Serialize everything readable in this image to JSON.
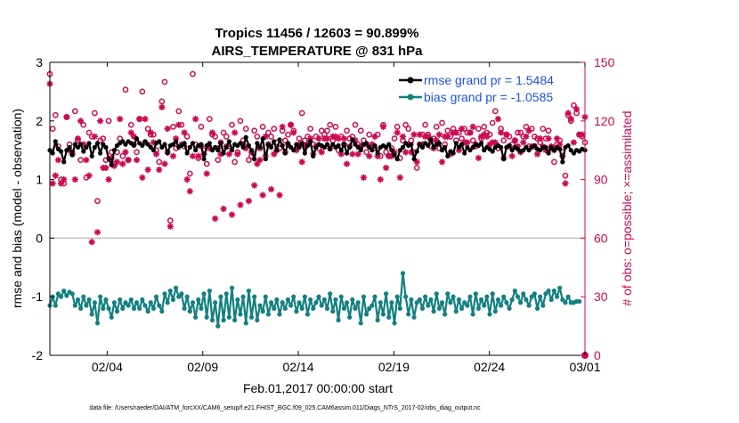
{
  "chart_data": {
    "type": "line",
    "title_line1": "Tropics 11456 / 12603 = 90.899%",
    "title_line2": "AIRS_TEMPERATURE @ 831 hPa",
    "xlabel": "Feb.01,2017 00:00:00 start",
    "ylabel_left": "rmse and bias (model - observation)",
    "ylabel_right": "# of obs: o=possible; ×=assimilated",
    "footer": "data file: /Users/raeder/DAI/ATM_forcXX/CAM6_setup/f.e21.FHIST_BGC.f09_025.CAM6assim.011/Diags_NTrS_2017-02/obs_diag_output.nc",
    "x_ticks": [
      "02/04",
      "02/09",
      "02/14",
      "02/19",
      "02/24",
      "03/01"
    ],
    "x_tick_days": [
      4,
      9,
      14,
      19,
      24,
      29
    ],
    "xlim": [
      1,
      29
    ],
    "ylim_left": [
      -2,
      3
    ],
    "y_ticks_left": [
      -2,
      -1,
      0,
      1,
      2,
      3
    ],
    "ylim_right": [
      0,
      150
    ],
    "y_ticks_right": [
      0,
      30,
      60,
      90,
      120,
      150
    ],
    "colors": {
      "rmse": "#000000",
      "bias": "#138080",
      "obs": "#cc0a52",
      "legend_text": "#1a53e6",
      "zero_line": "#c0c0c0"
    },
    "series": [
      {
        "name": "rmse grand pr = 1.5484",
        "axis": "left",
        "marker": "filled-circle",
        "values": [
          1.5,
          1.45,
          1.65,
          1.52,
          1.48,
          1.3,
          1.5,
          1.55,
          1.42,
          1.6,
          1.55,
          1.6,
          1.48,
          1.55,
          1.62,
          1.4,
          1.55,
          1.62,
          1.45,
          1.6,
          1.55,
          1.35,
          1.25,
          1.5,
          1.58,
          1.62,
          1.65,
          1.6,
          1.65,
          1.62,
          1.58,
          1.7,
          1.62,
          1.58,
          1.65,
          1.6,
          1.55,
          1.5,
          1.62,
          1.65,
          1.55,
          1.6,
          1.45,
          1.58,
          1.6,
          1.65,
          1.55,
          1.58,
          1.62,
          1.45,
          1.55,
          1.62,
          1.5,
          1.58,
          1.6,
          1.35,
          1.58,
          1.62,
          1.5,
          1.55,
          1.5,
          1.62,
          1.45,
          1.55,
          1.65,
          1.5,
          1.6,
          1.58,
          1.62,
          1.55,
          1.72,
          1.58,
          1.5,
          1.35,
          1.62,
          1.55,
          1.7,
          1.35,
          1.6,
          1.55,
          1.65,
          1.5,
          1.68,
          1.58,
          1.45,
          1.62,
          1.55,
          1.5,
          1.6,
          1.55,
          1.62,
          1.45,
          1.58,
          1.65,
          1.4,
          1.55,
          1.6,
          1.58,
          1.55,
          1.6,
          1.52,
          1.6,
          1.55,
          1.58,
          1.5,
          1.6,
          1.45,
          1.55,
          1.68,
          1.6,
          1.55,
          1.5,
          1.6,
          1.62,
          1.55,
          1.5,
          1.58,
          1.45,
          1.55,
          1.58,
          1.55,
          1.6,
          1.5,
          1.42,
          1.35,
          1.5,
          1.55,
          1.62,
          1.58,
          1.6,
          1.35,
          1.48,
          1.6,
          1.55,
          1.62,
          1.58,
          1.68,
          1.55,
          1.6,
          1.62,
          1.5,
          1.55,
          1.4,
          1.48,
          1.45,
          1.62,
          1.55,
          1.6,
          1.45,
          1.55,
          1.5,
          1.55,
          1.6,
          1.58,
          1.62,
          1.5,
          1.55,
          1.52,
          1.48,
          1.55,
          1.58,
          1.55,
          1.35,
          1.55,
          1.58,
          1.5,
          1.55,
          1.52,
          1.48,
          1.5,
          1.55,
          1.5,
          1.55,
          1.58,
          1.52,
          1.5,
          1.55,
          1.55,
          1.45,
          1.55,
          1.5,
          1.55,
          1.52,
          1.3,
          1.55,
          1.58,
          1.5,
          1.45,
          1.5,
          1.48,
          1.52,
          1.5
        ]
      },
      {
        "name": "bias grand pr = -1.0585",
        "axis": "left",
        "marker": "filled-circle",
        "values": [
          -1.15,
          -1.0,
          -1.15,
          -0.95,
          -1.0,
          -0.9,
          -0.98,
          -0.92,
          -0.95,
          -1.15,
          -1.05,
          -1.2,
          -1.0,
          -1.15,
          -1.05,
          -1.3,
          -1.1,
          -1.45,
          -1.0,
          -1.2,
          -1.05,
          -1.2,
          -1.35,
          -1.1,
          -1.25,
          -1.05,
          -1.2,
          -1.1,
          -1.15,
          -1.05,
          -1.2,
          -1.1,
          -1.2,
          -1.05,
          -1.15,
          -1.25,
          -1.1,
          -1.2,
          -1.0,
          -1.15,
          -1.25,
          -0.95,
          -1.1,
          -0.9,
          -1.05,
          -0.85,
          -1.0,
          -0.95,
          -1.2,
          -1.0,
          -1.25,
          -1.1,
          -1.35,
          -1.05,
          -1.2,
          -0.95,
          -1.35,
          -0.9,
          -1.4,
          -1.1,
          -1.5,
          -1.0,
          -1.4,
          -0.95,
          -1.35,
          -0.85,
          -1.4,
          -1.05,
          -1.3,
          -1.0,
          -1.45,
          -0.9,
          -1.35,
          -1.0,
          -1.4,
          -1.15,
          -1.25,
          -1.0,
          -1.3,
          -1.1,
          -1.2,
          -1.05,
          -1.3,
          -1.1,
          -1.2,
          -1.05,
          -1.15,
          -1.0,
          -1.25,
          -1.1,
          -1.2,
          -1.0,
          -1.3,
          -1.05,
          -1.2,
          -1.1,
          -1.0,
          -1.15,
          -1.05,
          -1.2,
          -0.95,
          -1.25,
          -1.05,
          -1.4,
          -1.0,
          -1.2,
          -1.1,
          -1.35,
          -1.05,
          -1.2,
          -1.1,
          -1.45,
          -1.0,
          -1.3,
          -1.2,
          -1.15,
          -1.0,
          -1.4,
          -1.1,
          -1.3,
          -0.95,
          -1.35,
          -1.1,
          -1.45,
          -1.0,
          -1.2,
          -0.6,
          -1.0,
          -1.3,
          -1.05,
          -1.35,
          -1.1,
          -1.05,
          -1.2,
          -1.0,
          -1.15,
          -1.05,
          -1.25,
          -0.95,
          -1.2,
          -1.1,
          -1.3,
          -0.95,
          -1.1,
          -1.0,
          -1.25,
          -1.05,
          -1.2,
          -1.1,
          -1.15,
          -1.0,
          -1.3,
          -0.95,
          -1.2,
          -1.05,
          -1.15,
          -1.0,
          -1.3,
          -0.95,
          -1.25,
          -1.05,
          -1.15,
          -1.0,
          -1.1,
          -1.2,
          -1.05,
          -0.9,
          -1.0,
          -1.1,
          -0.95,
          -1.05,
          -1.15,
          -1.0,
          -0.95,
          -1.2,
          -1.0,
          -1.15,
          -0.95,
          -0.9,
          -1.05,
          -0.9,
          -1.0,
          -0.85,
          -1.05,
          -1.1,
          -1.0,
          -1.1,
          -1.1,
          -1.08,
          -1.08
        ]
      },
      {
        "name": "possible obs",
        "axis": "right",
        "marker": "open-circle",
        "values": [
          144,
          116,
          123,
          107,
          90,
          88,
          122,
          108,
          104,
          125,
          110,
          100,
          118,
          91,
          114,
          112,
          124,
          79,
          110,
          111,
          100,
          120,
          104,
          98,
          104,
          111,
          102,
          136,
          100,
          118,
          108,
          104,
          121,
          135,
          109,
          116,
          113,
          113,
          105,
          99,
          130,
          140,
          104,
          69,
          117,
          106,
          125,
          118,
          107,
          112,
          93,
          144,
          108,
          101,
          117,
          105,
          98,
          121,
          113,
          112,
          100,
          109,
          114,
          112,
          107,
          118,
          99,
          104,
          120,
          110,
          116,
          100,
          102,
          115,
          112,
          106,
          117,
          102,
          114,
          112,
          116,
          109,
          106,
          115,
          110,
          113,
          118,
          115,
          106,
          111,
          124,
          110,
          112,
          116,
          108,
          112,
          106,
          115,
          113,
          115,
          118,
          110,
          117,
          105,
          112,
          108,
          115,
          111,
          112,
          118,
          108,
          115,
          110,
          104,
          113,
          107,
          106,
          113,
          102,
          118,
          104,
          102,
          106,
          111,
          117,
          101,
          110,
          118,
          116,
          110,
          104,
          96,
          108,
          113,
          118,
          113,
          107,
          111,
          117,
          106,
          119,
          108,
          115,
          112,
          116,
          110,
          114,
          111,
          116,
          114,
          114,
          110,
          107,
          116,
          111,
          117,
          114,
          113,
          119,
          125,
          106,
          116,
          110,
          113,
          112,
          108,
          110,
          114,
          114,
          112,
          117,
          107,
          116,
          112,
          111,
          109,
          116,
          111,
          115,
          106,
          99,
          108,
          110,
          104,
          92,
          123,
          120,
          128,
          124,
          113,
          112,
          109
        ]
      },
      {
        "name": "assimilated obs",
        "axis": "right",
        "marker": "asterisk",
        "values": [
          139,
          88,
          92,
          100,
          88,
          90,
          122,
          105,
          103,
          90,
          111,
          120,
          108,
          100,
          92,
          58,
          112,
          63,
          120,
          96,
          96,
          90,
          101,
          97,
          99,
          121,
          98,
          104,
          100,
          114,
          112,
          100,
          121,
          91,
          121,
          95,
          114,
          109,
          103,
          95,
          127,
          98,
          116,
          66,
          102,
          111,
          118,
          108,
          114,
          90,
          84,
          102,
          121,
          102,
          107,
          103,
          93,
          106,
          114,
          70,
          106,
          103,
          75,
          107,
          103,
          72,
          114,
          103,
          77,
          108,
          106,
          79,
          104,
          87,
          98,
          100,
          82,
          112,
          108,
          85,
          103,
          105,
          82,
          117,
          104,
          108,
          118,
          114,
          105,
          108,
          99,
          107,
          108,
          111,
          103,
          107,
          111,
          104,
          111,
          111,
          106,
          112,
          112,
          111,
          103,
          111,
          98,
          107,
          103,
          110,
          103,
          107,
          91,
          108,
          102,
          108,
          112,
          102,
          90,
          117,
          96,
          102,
          102,
          104,
          114,
          91,
          112,
          104,
          108,
          104,
          113,
          99,
          113,
          108,
          112,
          112,
          110,
          106,
          110,
          113,
          99,
          112,
          112,
          103,
          114,
          114,
          105,
          116,
          109,
          109,
          114,
          117,
          108,
          101,
          112,
          113,
          112,
          108,
          109,
          109,
          121,
          114,
          101,
          113,
          107,
          102,
          110,
          107,
          104,
          109,
          112,
          115,
          107,
          107,
          103,
          111,
          107,
          105,
          111,
          107,
          105,
          111,
          108,
          102,
          88,
          124,
          121,
          109,
          126,
          113,
          113,
          122
        ]
      }
    ],
    "last_bar_value_right": 0
  }
}
